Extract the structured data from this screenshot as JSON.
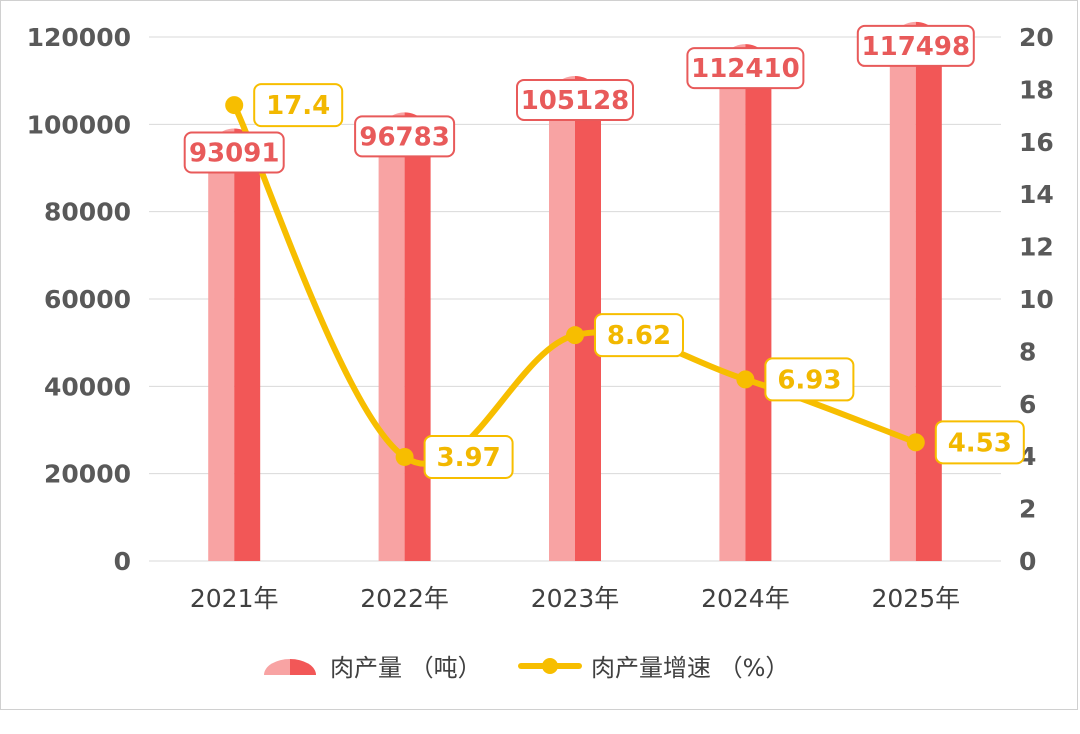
{
  "chart_data": {
    "type": "bar",
    "categories": [
      "2021年",
      "2022年",
      "2023年",
      "2024年",
      "2025年"
    ],
    "series": [
      {
        "name": "肉产量 （吨）",
        "type": "bar",
        "axis": "left",
        "values": [
          93091,
          96783,
          105128,
          112410,
          117498
        ]
      },
      {
        "name": "肉产量增速 （%）",
        "type": "line",
        "axis": "right",
        "values": [
          17.4,
          3.97,
          8.62,
          6.93,
          4.53
        ]
      }
    ],
    "y_left": {
      "ylim": [
        0,
        120000
      ],
      "ticks": [
        "0",
        "20000",
        "40000",
        "60000",
        "80000",
        "100000",
        "120000"
      ]
    },
    "y_right": {
      "ylim": [
        0,
        20
      ],
      "ticks": [
        "0",
        "2",
        "4",
        "6",
        "8",
        "10",
        "12",
        "14",
        "16",
        "18",
        "20"
      ]
    },
    "grid": true,
    "legend": "bottom",
    "colors": {
      "bar_light": "#f8a3a3",
      "bar_dark": "#f25757",
      "bar_label": "#e85a5a",
      "line": "#f7be00",
      "label_text": "#f2b800",
      "grid": "#d9d9d9"
    }
  }
}
